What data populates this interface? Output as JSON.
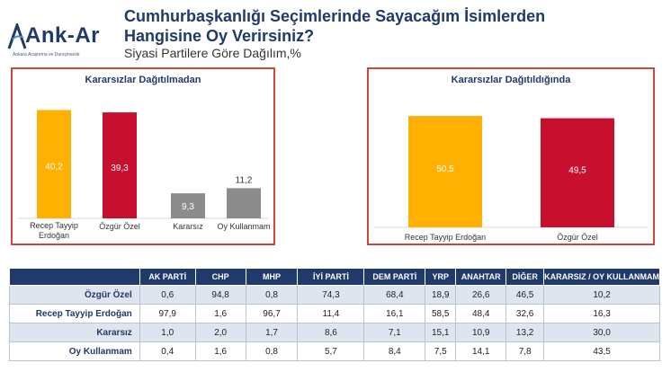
{
  "logo": {
    "name": "Ank-Ar",
    "tagline": "Ankara Araştırma ve Danışmanlık"
  },
  "header": {
    "title_line1": "Cumhurbaşkanlığı Seçimlerinde Sayacağım İsimlerden",
    "title_line2": "Hangisine Oy Verirsiniz?",
    "subtitle": "Siyasi Partilere Göre Dağılım,%"
  },
  "chart_data": [
    {
      "type": "bar",
      "title": "Kararsızlar Dağıtılmadan",
      "categories": [
        "Recep Tayyip Erdoğan",
        "Özgür Özel",
        "Kararsız",
        "Oy Kullanmam"
      ],
      "values": [
        40.2,
        39.3,
        9.3,
        11.2
      ],
      "labels": [
        "40,2",
        "39,3",
        "9,3",
        "11,2"
      ],
      "colors": [
        "#ffb000",
        "#c8102e",
        "#8c8c8c",
        "#8c8c8c"
      ],
      "ylim": [
        0,
        42
      ]
    },
    {
      "type": "bar",
      "title": "Kararsızlar Dağıtıldığında",
      "categories": [
        "Recep Tayyip Erdoğan",
        "Özgür Özel"
      ],
      "values": [
        50.5,
        49.5
      ],
      "labels": [
        "50,5",
        "49,5"
      ],
      "colors": [
        "#ffb000",
        "#c8102e"
      ],
      "ylim": [
        0,
        53
      ]
    }
  ],
  "table": {
    "headers": [
      "",
      "AK PARTİ",
      "CHP",
      "MHP",
      "İYİ PARTİ",
      "DEM PARTİ",
      "YRP",
      "ANAHTAR",
      "DİĞER",
      "KARARSIZ / OY KULLANMAM"
    ],
    "rows": [
      {
        "label": "Özgür Özel",
        "cells": [
          "0,6",
          "94,8",
          "0,8",
          "74,3",
          "68,4",
          "18,9",
          "26,6",
          "46,5",
          "10,2"
        ]
      },
      {
        "label": "Recep Tayyip Erdoğan",
        "cells": [
          "97,9",
          "1,6",
          "96,7",
          "11,4",
          "16,1",
          "58,5",
          "48,4",
          "32,6",
          "16,3"
        ]
      },
      {
        "label": "Kararsız",
        "cells": [
          "1,0",
          "2,0",
          "1,7",
          "8,6",
          "7,1",
          "15,1",
          "10,9",
          "13,2",
          "30,0"
        ]
      },
      {
        "label": "Oy Kullanmam",
        "cells": [
          "0,4",
          "1,6",
          "0,8",
          "5,7",
          "8,4",
          "7,5",
          "14,1",
          "7,8",
          "43,5"
        ]
      }
    ]
  }
}
